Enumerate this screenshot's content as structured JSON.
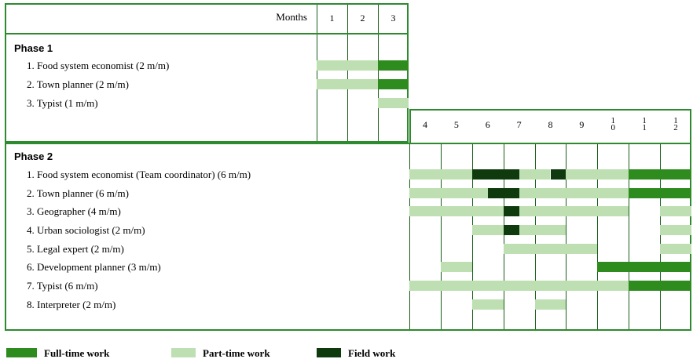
{
  "header": {
    "months_label": "Months"
  },
  "chart_data": {
    "type": "gantt",
    "phase1": {
      "title": "Phase 1",
      "months": [
        "1",
        "2",
        "3"
      ],
      "tasks": [
        {
          "label": "1. Food system economist (2 m/m)",
          "bars": [
            [
              "part",
              1,
              3
            ],
            [
              "full",
              3,
              4
            ]
          ]
        },
        {
          "label": "2. Town planner (2 m/m)",
          "bars": [
            [
              "part",
              1,
              3
            ],
            [
              "full",
              3,
              4
            ]
          ]
        },
        {
          "label": "3. Typist (1 m/m)",
          "bars": [
            [
              "part",
              3,
              4
            ]
          ]
        }
      ]
    },
    "phase2": {
      "title": "Phase 2",
      "months": [
        "4",
        "5",
        "6",
        "7",
        "8",
        "9",
        "10",
        "11",
        "12"
      ],
      "tasks": [
        {
          "label": "1. Food system economist (Team coordinator) (6 m/m)",
          "bars": [
            [
              "part",
              4,
              6
            ],
            [
              "field",
              6,
              7.5
            ],
            [
              "part",
              7.5,
              8.5
            ],
            [
              "field",
              8.5,
              9
            ],
            [
              "part",
              9,
              11
            ],
            [
              "full",
              11,
              13
            ]
          ]
        },
        {
          "label": "2. Town planner (6 m/m)",
          "bars": [
            [
              "part",
              4,
              6.5
            ],
            [
              "field",
              6.5,
              7.5
            ],
            [
              "part",
              7.5,
              11
            ],
            [
              "full",
              11,
              13
            ]
          ]
        },
        {
          "label": "3. Geographer (4 m/m)",
          "bars": [
            [
              "part",
              4,
              7
            ],
            [
              "field",
              7,
              7.5
            ],
            [
              "part",
              7.5,
              11
            ],
            [
              "part",
              12,
              13
            ]
          ]
        },
        {
          "label": "4. Urban sociologist (2 m/m)",
          "bars": [
            [
              "part",
              6,
              7
            ],
            [
              "field",
              7,
              7.5
            ],
            [
              "part",
              7.5,
              9
            ],
            [
              "part",
              12,
              13
            ]
          ]
        },
        {
          "label": "5. Legal expert (2 m/m)",
          "bars": [
            [
              "part",
              7,
              10
            ],
            [
              "part",
              12,
              13
            ]
          ]
        },
        {
          "label": "6. Development planner (3 m/m)",
          "bars": [
            [
              "part",
              5,
              6
            ],
            [
              "full",
              10,
              13
            ]
          ]
        },
        {
          "label": "7. Typist (6 m/m)",
          "bars": [
            [
              "part",
              4,
              11
            ],
            [
              "full",
              11,
              13
            ]
          ]
        },
        {
          "label": "8. Interpreter (2 m/m)",
          "bars": [
            [
              "part",
              6,
              7
            ],
            [
              "part",
              8,
              9
            ]
          ]
        }
      ]
    },
    "legend": [
      {
        "type": "full",
        "label": "Full-time work"
      },
      {
        "type": "part",
        "label": "Part-time work"
      },
      {
        "type": "field",
        "label": "Field work"
      }
    ],
    "colors": {
      "full": "#2e8b1e",
      "part": "#bddfb1",
      "field": "#0e3a0e",
      "border": "#2e8a2e",
      "grid_line": "#1a5e1a"
    }
  }
}
